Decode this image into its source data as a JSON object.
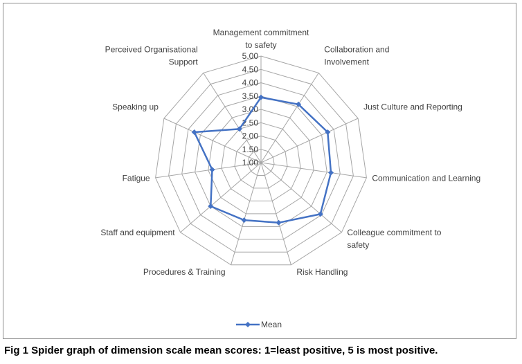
{
  "caption": "Fig 1 Spider graph of dimension scale mean scores: 1=least positive, 5 is most positive.",
  "chart_data": {
    "type": "radar",
    "categories": [
      [
        "Management commitment",
        "to safety"
      ],
      [
        "Collaboration and",
        "Involvement"
      ],
      [
        "Just Culture and Reporting"
      ],
      [
        "Communication and Learning"
      ],
      [
        "Colleague commitment to",
        "safety"
      ],
      [
        "Risk Handling"
      ],
      [
        "Procedures & Training"
      ],
      [
        "Staff and equipment"
      ],
      [
        "Fatigue"
      ],
      [
        "Speaking up"
      ],
      [
        "Perceived Organisational",
        "Support"
      ]
    ],
    "series": [
      {
        "name": "Mean",
        "color": "#4472C4",
        "marker": "diamond",
        "values": [
          3.45,
          3.6,
          3.75,
          3.65,
          3.95,
          3.35,
          3.25,
          3.5,
          2.85,
          3.75,
          2.5
        ]
      }
    ],
    "rlim": [
      1.0,
      5.0
    ],
    "ticks": [
      "1.00",
      "1.50",
      "2.00",
      "2.50",
      "3.00",
      "3.50",
      "4.00",
      "4.50",
      "5.00"
    ],
    "tick_values": [
      1.0,
      1.5,
      2.0,
      2.5,
      3.0,
      3.5,
      4.0,
      4.5,
      5.0
    ],
    "grid": true,
    "legend_position": "bottom",
    "gridline_color": "#A6A6A6"
  }
}
